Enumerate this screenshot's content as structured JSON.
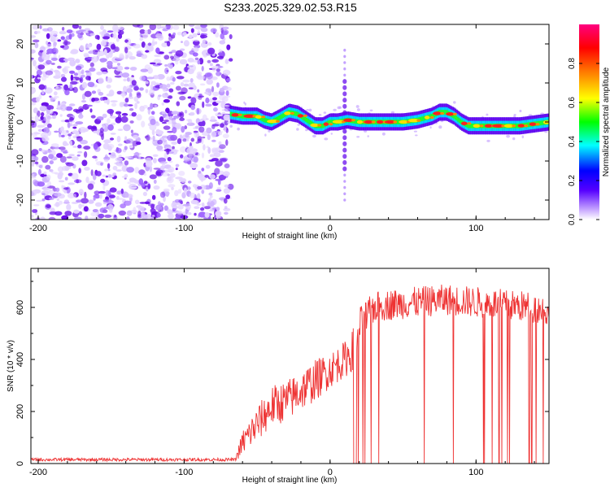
{
  "title": "S233.2025.329.02.53.R15",
  "chart_data": [
    {
      "type": "heatmap",
      "panel": "spectrogram",
      "xlabel": "Height of straight line (km)",
      "ylabel": "Frequency (Hz)",
      "xlim": [
        -205,
        150
      ],
      "ylim": [
        -25,
        25
      ],
      "x_ticks": [
        -200,
        -100,
        0,
        100
      ],
      "y_ticks": [
        -20,
        -10,
        0,
        10,
        20
      ],
      "colorbar": {
        "label": "Normalized spectral amplitude",
        "range": [
          0,
          1
        ],
        "ticks": [
          0.0,
          0.2,
          0.4,
          0.6,
          0.8
        ],
        "tick_labels": [
          "0.0",
          "0.2",
          "0.4",
          "0.6",
          "0.8"
        ],
        "colors": [
          "#ffffff",
          "#5500ff",
          "#0000ff",
          "#00ffff",
          "#00ff00",
          "#ffff00",
          "#ff8000",
          "#ff0000",
          "#ff0080"
        ]
      },
      "noise_region": {
        "x_from": -205,
        "x_to": -68,
        "f_from": -25,
        "f_to": 25
      },
      "spike": {
        "x": 10,
        "f_from": -20,
        "f_to": 20
      },
      "ridge": {
        "x": [
          -68,
          -60,
          -50,
          -45,
          -40,
          -35,
          -28,
          -22,
          -18,
          -14,
          -10,
          -5,
          0,
          5,
          12,
          20,
          30,
          40,
          50,
          60,
          65,
          70,
          75,
          80,
          85,
          90,
          95,
          100,
          110,
          120,
          130,
          140,
          150
        ],
        "freq": [
          2,
          1.5,
          1.5,
          0.5,
          0,
          1,
          2.5,
          2,
          1,
          0,
          -1,
          -1,
          0,
          0,
          0.5,
          0,
          0,
          0,
          0,
          0.5,
          1,
          1.5,
          2.5,
          2.5,
          1.5,
          0,
          -1,
          -1,
          -1,
          -1,
          -1,
          -0.5,
          0
        ]
      }
    },
    {
      "type": "line",
      "panel": "snr",
      "xlabel": "Height of straight line (km)",
      "ylabel": "SNR (10 * v/v)",
      "xlim": [
        -205,
        150
      ],
      "ylim": [
        0,
        750
      ],
      "x_ticks": [
        -200,
        -100,
        0,
        100
      ],
      "y_ticks": [
        0,
        200,
        400,
        600
      ],
      "color": "#ee3333",
      "envelope": {
        "x": [
          -205,
          -65,
          -60,
          -50,
          -40,
          -30,
          -20,
          -10,
          0,
          10,
          15,
          20,
          30,
          40,
          60,
          80,
          100,
          120,
          140,
          150
        ],
        "baseline": [
          15,
          15,
          80,
          150,
          220,
          240,
          280,
          320,
          360,
          400,
          430,
          520,
          600,
          610,
          620,
          630,
          620,
          610,
          600,
          580
        ],
        "spread": [
          6,
          6,
          50,
          70,
          80,
          80,
          80,
          80,
          70,
          70,
          80,
          80,
          60,
          60,
          60,
          60,
          60,
          60,
          60,
          60
        ]
      },
      "dropout_region": {
        "x_from": 16,
        "x_to": 150
      }
    }
  ]
}
